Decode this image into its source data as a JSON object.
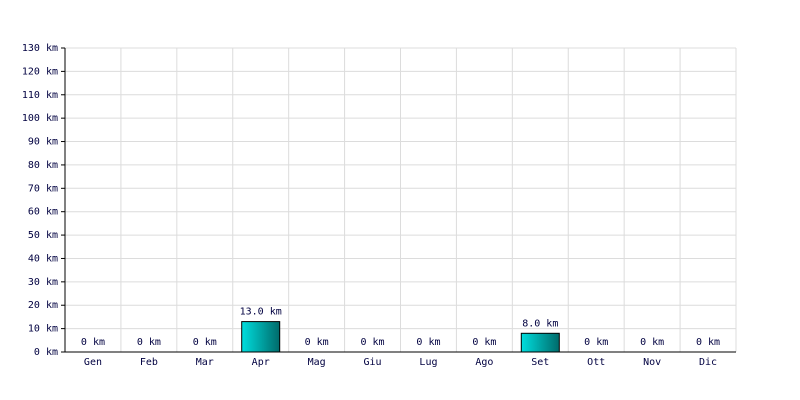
{
  "chart_data": {
    "type": "bar",
    "categories": [
      "Gen",
      "Feb",
      "Mar",
      "Apr",
      "Mag",
      "Giu",
      "Lug",
      "Ago",
      "Set",
      "Ott",
      "Nov",
      "Dic"
    ],
    "values": [
      0,
      0,
      0,
      13,
      0,
      0,
      0,
      0,
      8,
      0,
      0,
      0
    ],
    "value_labels": [
      "0 km",
      "0 km",
      "0 km",
      "13.0 km",
      "0 km",
      "0 km",
      "0 km",
      "0 km",
      "8.0 km",
      "0 km",
      "0 km",
      "0 km"
    ],
    "color": "#00dede",
    "ylim": [
      0,
      130
    ],
    "yticks": [
      {
        "value": 0,
        "label": "0 km"
      },
      {
        "value": 10,
        "label": "10 km"
      },
      {
        "value": 20,
        "label": "20 km"
      },
      {
        "value": 30,
        "label": "30 km"
      },
      {
        "value": 40,
        "label": "40 km"
      },
      {
        "value": 50,
        "label": "50 km"
      },
      {
        "value": 60,
        "label": "60 km"
      },
      {
        "value": 70,
        "label": "70 km"
      },
      {
        "value": 80,
        "label": "80 km"
      },
      {
        "value": 90,
        "label": "90 km"
      },
      {
        "value": 100,
        "label": "100 km"
      },
      {
        "value": 110,
        "label": "110 km"
      },
      {
        "value": 120,
        "label": "120 km"
      },
      {
        "value": 130,
        "label": "130 km"
      }
    ],
    "grid": true
  }
}
